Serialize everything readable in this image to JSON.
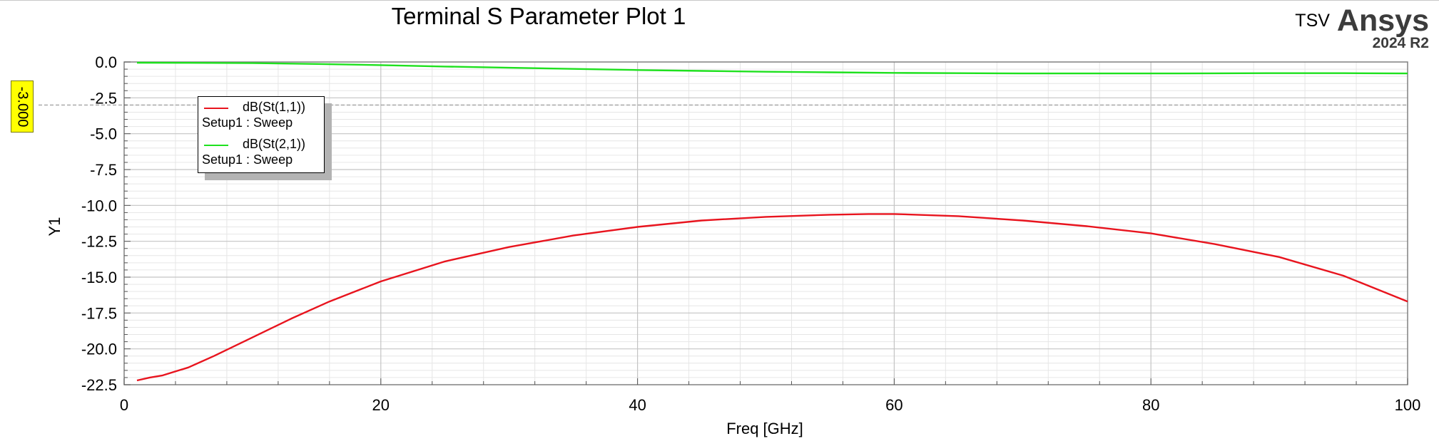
{
  "chart_data": {
    "type": "line",
    "title": "Terminal S Parameter Plot 1",
    "xlabel": "Freq [GHz]",
    "ylabel": "Y1",
    "xlim": [
      0,
      100
    ],
    "ylim": [
      -22.5,
      0.0
    ],
    "x_ticks": [
      "0",
      "20",
      "40",
      "60",
      "80",
      "100"
    ],
    "y_ticks": [
      "0.0",
      "-2.5",
      "-5.0",
      "-7.5",
      "-10.0",
      "-12.5",
      "-15.0",
      "-17.5",
      "-20.0",
      "-22.5"
    ],
    "grid": true,
    "legend_position": "top-left",
    "series": [
      {
        "name": "dB(St(1,1))",
        "setup": "Setup1 : Sweep",
        "color": "#e8141e",
        "x": [
          1,
          2,
          3,
          5,
          7,
          10,
          13,
          16,
          20,
          25,
          30,
          35,
          40,
          45,
          50,
          55,
          58,
          60,
          65,
          70,
          75,
          80,
          85,
          90,
          95,
          100
        ],
        "y": [
          -22.2,
          -22.0,
          -21.85,
          -21.3,
          -20.5,
          -19.2,
          -17.9,
          -16.7,
          -15.3,
          -13.9,
          -12.9,
          -12.1,
          -11.5,
          -11.05,
          -10.8,
          -10.65,
          -10.6,
          -10.6,
          -10.75,
          -11.05,
          -11.45,
          -11.95,
          -12.7,
          -13.6,
          -14.9,
          -16.7
        ]
      },
      {
        "name": "dB(St(2,1))",
        "setup": "Setup1 : Sweep",
        "color": "#1ee11e",
        "x": [
          1,
          5,
          10,
          15,
          20,
          25,
          30,
          35,
          40,
          45,
          50,
          55,
          60,
          65,
          70,
          75,
          80,
          85,
          90,
          95,
          100
        ],
        "y": [
          -0.05,
          -0.06,
          -0.08,
          -0.14,
          -0.22,
          -0.32,
          -0.4,
          -0.48,
          -0.56,
          -0.62,
          -0.68,
          -0.72,
          -0.76,
          -0.78,
          -0.8,
          -0.8,
          -0.8,
          -0.79,
          -0.78,
          -0.78,
          -0.8
        ]
      }
    ],
    "marker": {
      "label": "-3.000",
      "y": -3.0,
      "color": "#ffff00"
    }
  },
  "brand": {
    "tsv": "TSV",
    "ansys": "Ansys",
    "version": "2024 R2"
  }
}
